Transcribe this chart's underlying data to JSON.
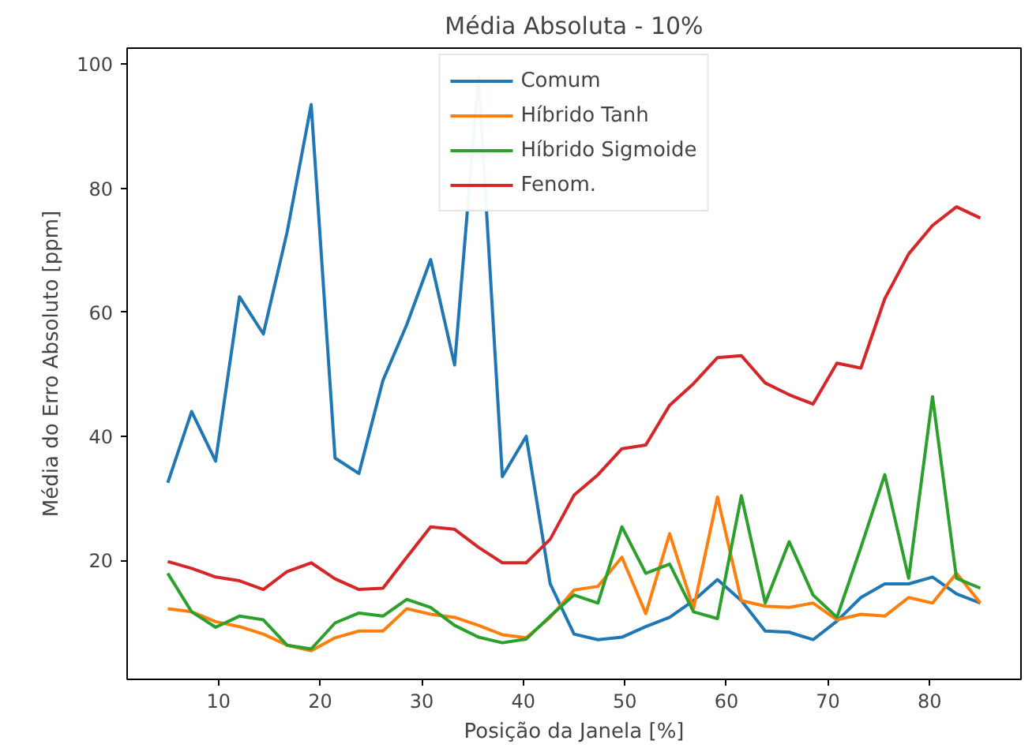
{
  "chart_data": {
    "type": "line",
    "title": "Média Absoluta - 10%",
    "xlabel": "Posição da Janela [%]",
    "ylabel": "Média do Erro Absoluto [ppm]",
    "x": [
      5,
      7.35,
      9.71,
      12.06,
      14.41,
      16.76,
      19.12,
      21.47,
      23.82,
      26.18,
      28.53,
      30.88,
      33.24,
      35.59,
      37.94,
      40.29,
      42.65,
      45,
      47.35,
      49.71,
      52.06,
      54.41,
      56.76,
      59.12,
      61.47,
      63.82,
      66.18,
      68.53,
      70.88,
      73.24,
      75.59,
      77.94,
      80.29,
      82.65,
      85
    ],
    "series": [
      {
        "name": "Comum",
        "color": "#1f77b4",
        "values": [
          32.5,
          44,
          36,
          62.5,
          56.5,
          73,
          93.5,
          36.5,
          34,
          49,
          58,
          68.5,
          51.5,
          98,
          33.5,
          40,
          16.2,
          8.1,
          7.2,
          7.6,
          9.3,
          10.8,
          13.5,
          16.9,
          13.5,
          8.6,
          8.4,
          7.2,
          10.2,
          14,
          16.2,
          16.2,
          17.3,
          14.6,
          13.1
        ]
      },
      {
        "name": "Híbrido Tanh",
        "color": "#ff7f0e",
        "values": [
          12.2,
          11.7,
          10.1,
          9.3,
          8.1,
          6.3,
          5.4,
          7.5,
          8.6,
          8.6,
          12.2,
          11.3,
          10.8,
          9.5,
          8,
          7.5,
          10.8,
          15.2,
          15.8,
          20.5,
          11.4,
          24.3,
          12.2,
          30.2,
          13.5,
          12.6,
          12.4,
          13.1,
          10.4,
          11.3,
          11,
          14,
          13.1,
          17.9,
          13.1
        ]
      },
      {
        "name": "Híbrido Sigmoide",
        "color": "#2ca02c",
        "values": [
          17.9,
          11.7,
          9.2,
          11,
          10.4,
          6.3,
          5.7,
          9.9,
          11.5,
          11,
          13.7,
          12.4,
          9.5,
          7.6,
          6.7,
          7.3,
          11,
          14.4,
          13.1,
          25.4,
          17.9,
          19.4,
          11.7,
          10.6,
          30.4,
          13.1,
          23,
          14.4,
          10.8,
          22.1,
          33.8,
          17.1,
          46.4,
          17.1,
          15.5
        ]
      },
      {
        "name": "Fenom.",
        "color": "#d62728",
        "values": [
          19.8,
          18.7,
          17.3,
          16.7,
          15.3,
          18.2,
          19.6,
          17,
          15.3,
          15.5,
          20.5,
          25.4,
          25,
          22.1,
          19.6,
          19.6,
          23.4,
          30.5,
          33.8,
          38,
          38.6,
          45,
          48.5,
          52.7,
          53,
          48.6,
          46.7,
          45.2,
          51.8,
          51,
          62.2,
          69.4,
          74,
          77,
          75.2
        ]
      }
    ],
    "xlim": [
      1,
      89
    ],
    "ylim": [
      0.8,
      102.6
    ],
    "xticks": [
      10,
      20,
      30,
      40,
      50,
      60,
      70,
      80
    ],
    "yticks": [
      20,
      40,
      60,
      80,
      100
    ],
    "grid": false,
    "legend": "top",
    "marker": "none",
    "line_style": "solid"
  }
}
